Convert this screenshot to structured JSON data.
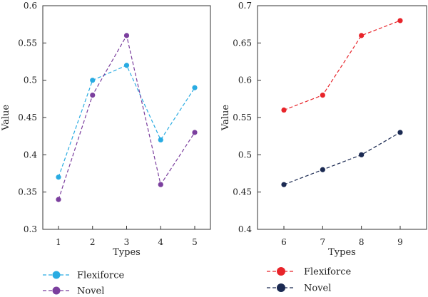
{
  "chart_data": [
    {
      "type": "line",
      "xlabel": "Types",
      "ylabel": "Value",
      "x": [
        1,
        2,
        3,
        4,
        5
      ],
      "xticks": [
        "1",
        "2",
        "3",
        "4",
        "5"
      ],
      "ylim": [
        0.3,
        0.6
      ],
      "yticks": [
        "0.3",
        "0.35",
        "0.4",
        "0.45",
        "0.5",
        "0.55",
        "0.6"
      ],
      "grid": false,
      "legend_position": "bottom",
      "series": [
        {
          "name": "Flexiforce",
          "color": "#29abe2",
          "values": [
            0.37,
            0.5,
            0.52,
            0.42,
            0.49
          ]
        },
        {
          "name": "Novel",
          "color": "#7b3f9e",
          "values": [
            0.34,
            0.48,
            0.56,
            0.36,
            0.43
          ]
        }
      ]
    },
    {
      "type": "line",
      "xlabel": "Types",
      "ylabel": "Value",
      "x": [
        6,
        7,
        8,
        9
      ],
      "xticks": [
        "6",
        "7",
        "8",
        "9"
      ],
      "ylim": [
        0.4,
        0.7
      ],
      "yticks": [
        "0.4",
        "0.45",
        "0.5",
        "0.55",
        "0.6",
        "0.65",
        "0.7"
      ],
      "grid": false,
      "legend_position": "bottom",
      "series": [
        {
          "name": "Flexiforce",
          "color": "#e8242a",
          "values": [
            0.56,
            0.58,
            0.66,
            0.68
          ]
        },
        {
          "name": "Novel",
          "color": "#1b2a52",
          "values": [
            0.46,
            0.48,
            0.5,
            0.53
          ]
        }
      ]
    }
  ]
}
